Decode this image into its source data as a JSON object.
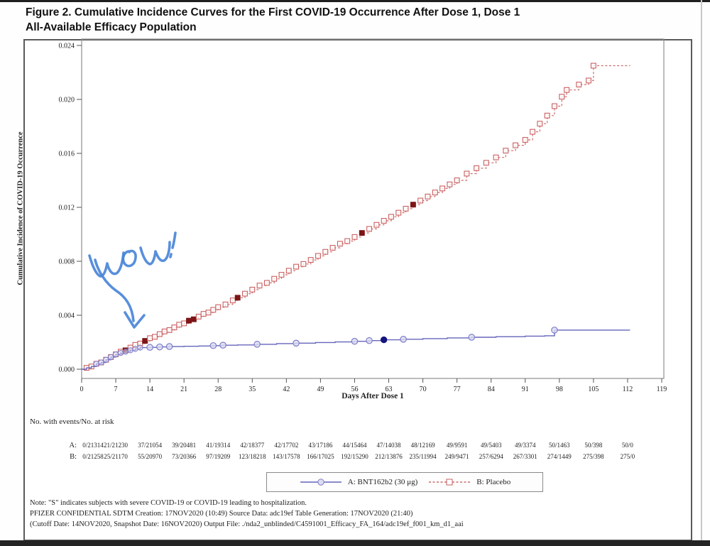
{
  "page": {
    "title_line1": "Figure 2. Cumulative Incidence Curves for the First COVID-19 Occurrence After Dose 1, Dose 1",
    "title_line2": "All-Available Efficacy Population"
  },
  "colors": {
    "vaccine_line": "#6565bb",
    "vaccine_marker_stroke": "#7d7dc9",
    "vaccine_marker_fill": "#dcdcf2",
    "vaccine_severe_fill": "#15157d",
    "placebo_line": "#cf6a6a",
    "placebo_marker_stroke": "#c96060",
    "placebo_severe_fill": "#7d1517",
    "annotation_blue": "#4a86d8",
    "axis_gray": "#8f8f8f",
    "text_dark": "#222222"
  },
  "chart_data": {
    "type": "line",
    "title": "",
    "xlabel": "Days After Dose 1",
    "ylabel": "Cumulative Incidence of COVID-19 Occurrence",
    "xlim": [
      0,
      119
    ],
    "ylim": [
      0,
      0.024
    ],
    "grid": false,
    "legend_position": "bottom",
    "x_ticks": [
      0,
      7,
      14,
      21,
      28,
      35,
      42,
      49,
      56,
      63,
      70,
      77,
      84,
      91,
      98,
      105,
      112,
      119
    ],
    "y_tick_labels": [
      "0.000",
      "0.004",
      "0.008",
      "0.012",
      "0.016",
      "0.020",
      "0.024"
    ],
    "y_tick_values": [
      0.0,
      0.004,
      0.008,
      0.012,
      0.016,
      0.02,
      0.024
    ],
    "series": [
      {
        "name": "A: BNT162b2 (30 μg)",
        "style": "solid",
        "marker": "circle",
        "points": [
          [
            0,
            0
          ],
          [
            1,
            0.0001
          ],
          [
            2,
            0.0002
          ],
          [
            3,
            0.0004
          ],
          [
            4,
            0.0005
          ],
          [
            5,
            0.0007
          ],
          [
            6,
            0.0009
          ],
          [
            7,
            0.0011
          ],
          [
            8,
            0.0012
          ],
          [
            9,
            0.0013
          ],
          [
            10,
            0.0014
          ],
          [
            11,
            0.0015
          ],
          [
            12,
            0.0016
          ],
          [
            14,
            0.00162
          ],
          [
            16,
            0.00165
          ],
          [
            18,
            0.00168
          ],
          [
            21,
            0.0017
          ],
          [
            24,
            0.00172
          ],
          [
            27,
            0.00175
          ],
          [
            29,
            0.00178
          ],
          [
            32,
            0.0018
          ],
          [
            36,
            0.00185
          ],
          [
            40,
            0.0019
          ],
          [
            44,
            0.00193
          ],
          [
            48,
            0.00198
          ],
          [
            52,
            0.00202
          ],
          [
            56,
            0.00207
          ],
          [
            59,
            0.00212
          ],
          [
            62,
            0.00218
          ],
          [
            66,
            0.00222
          ],
          [
            70,
            0.00227
          ],
          [
            75,
            0.00232
          ],
          [
            80,
            0.00237
          ],
          [
            85,
            0.00241
          ],
          [
            91,
            0.00245
          ],
          [
            95,
            0.00248
          ],
          [
            97,
            0.0029
          ],
          [
            112.5,
            0.0029
          ]
        ],
        "marker_days": [
          14,
          16,
          18,
          27,
          29,
          36,
          44,
          56,
          59,
          66,
          80,
          97
        ],
        "severe_marker_days": [
          62
        ]
      },
      {
        "name": "B: Placebo",
        "style": "dashed",
        "marker": "square",
        "points": [
          [
            0,
            0
          ],
          [
            1,
            0.0001
          ],
          [
            2,
            0.0002
          ],
          [
            3,
            0.0004
          ],
          [
            4,
            0.0005
          ],
          [
            5,
            0.0007
          ],
          [
            6,
            0.0009
          ],
          [
            7,
            0.0011
          ],
          [
            8,
            0.0013
          ],
          [
            9,
            0.0014
          ],
          [
            10,
            0.0016
          ],
          [
            11,
            0.0018
          ],
          [
            12,
            0.0019
          ],
          [
            13,
            0.0021
          ],
          [
            14,
            0.0023
          ],
          [
            15,
            0.0024
          ],
          [
            16,
            0.0026
          ],
          [
            17,
            0.0028
          ],
          [
            18,
            0.0029
          ],
          [
            19,
            0.0031
          ],
          [
            20,
            0.0033
          ],
          [
            21,
            0.0034
          ],
          [
            22,
            0.0036
          ],
          [
            23,
            0.0037
          ],
          [
            24,
            0.0039
          ],
          [
            25,
            0.0041
          ],
          [
            26,
            0.0042
          ],
          [
            27,
            0.0044
          ],
          [
            28,
            0.0046
          ],
          [
            29.5,
            0.0048
          ],
          [
            31,
            0.0051
          ],
          [
            32,
            0.0053
          ],
          [
            33.5,
            0.0056
          ],
          [
            35,
            0.0059
          ],
          [
            36.5,
            0.0062
          ],
          [
            38,
            0.0064
          ],
          [
            39.5,
            0.0067
          ],
          [
            41,
            0.007
          ],
          [
            42.5,
            0.0073
          ],
          [
            44,
            0.0076
          ],
          [
            45.5,
            0.0078
          ],
          [
            47,
            0.0081
          ],
          [
            48.5,
            0.0084
          ],
          [
            50,
            0.0087
          ],
          [
            51.5,
            0.009
          ],
          [
            53,
            0.0093
          ],
          [
            54.5,
            0.0095
          ],
          [
            56,
            0.0098
          ],
          [
            57.5,
            0.0101
          ],
          [
            59,
            0.0104
          ],
          [
            60.5,
            0.0107
          ],
          [
            62,
            0.011
          ],
          [
            63.5,
            0.0113
          ],
          [
            65,
            0.0116
          ],
          [
            66.5,
            0.0119
          ],
          [
            68,
            0.0122
          ],
          [
            69.5,
            0.0125
          ],
          [
            71,
            0.0128
          ],
          [
            72.5,
            0.0131
          ],
          [
            74,
            0.0134
          ],
          [
            75.5,
            0.0137
          ],
          [
            77,
            0.014
          ],
          [
            79,
            0.0145
          ],
          [
            81,
            0.0149
          ],
          [
            83,
            0.0153
          ],
          [
            85,
            0.0157
          ],
          [
            87,
            0.0162
          ],
          [
            89,
            0.0166
          ],
          [
            91,
            0.017
          ],
          [
            92.5,
            0.0176
          ],
          [
            94,
            0.0182
          ],
          [
            95.5,
            0.0188
          ],
          [
            97,
            0.0195
          ],
          [
            98.5,
            0.0202
          ],
          [
            99.5,
            0.0207
          ],
          [
            102,
            0.0211
          ],
          [
            104,
            0.0214
          ],
          [
            105,
            0.0225
          ],
          [
            112.5,
            0.0225
          ]
        ],
        "marker_days": "all",
        "severe_marker_days": [
          9,
          13,
          22,
          23,
          32,
          57.5,
          68
        ]
      }
    ]
  },
  "risk_table": {
    "header": "No. with events/No. at risk",
    "column_days": [
      0,
      7,
      14,
      21,
      28,
      35,
      42,
      49,
      56,
      63,
      70,
      77,
      84,
      91,
      98,
      105,
      112
    ],
    "rows": [
      {
        "label": "A:",
        "values": [
          "0/21314",
          "21/21230",
          "37/21054",
          "39/20481",
          "41/19314",
          "42/18377",
          "42/17702",
          "43/17186",
          "44/15464",
          "47/14038",
          "48/12169",
          "49/9591",
          "49/5403",
          "49/3374",
          "50/1463",
          "50/398",
          "50/0"
        ]
      },
      {
        "label": "B:",
        "values": [
          "0/21258",
          "25/21170",
          "55/20970",
          "73/20366",
          "97/19209",
          "123/18218",
          "143/17578",
          "166/17025",
          "192/15290",
          "212/13876",
          "235/11994",
          "249/9471",
          "257/6294",
          "267/3301",
          "274/1449",
          "275/398",
          "275/0"
        ]
      }
    ]
  },
  "legend": {
    "a_label": "A: BNT162b2 (30 μg)",
    "b_label": "B: Placebo"
  },
  "annotation": {
    "text": "WOW!"
  },
  "notes": {
    "line1": "Note: \"S\" indicates subjects with severe COVID-19 or COVID-19 leading to hospitalization.",
    "line2": "PFIZER CONFIDENTIAL SDTM Creation: 17NOV2020 (10:49) Source Data: adc19ef Table Generation: 17NOV2020 (21:40)",
    "line3": "(Cutoff Date: 14NOV2020, Snapshot Date: 16NOV2020) Output File: ./nda2_unblinded/C4591001_Efficacy_FA_164/adc19ef_f001_km_d1_aai"
  }
}
